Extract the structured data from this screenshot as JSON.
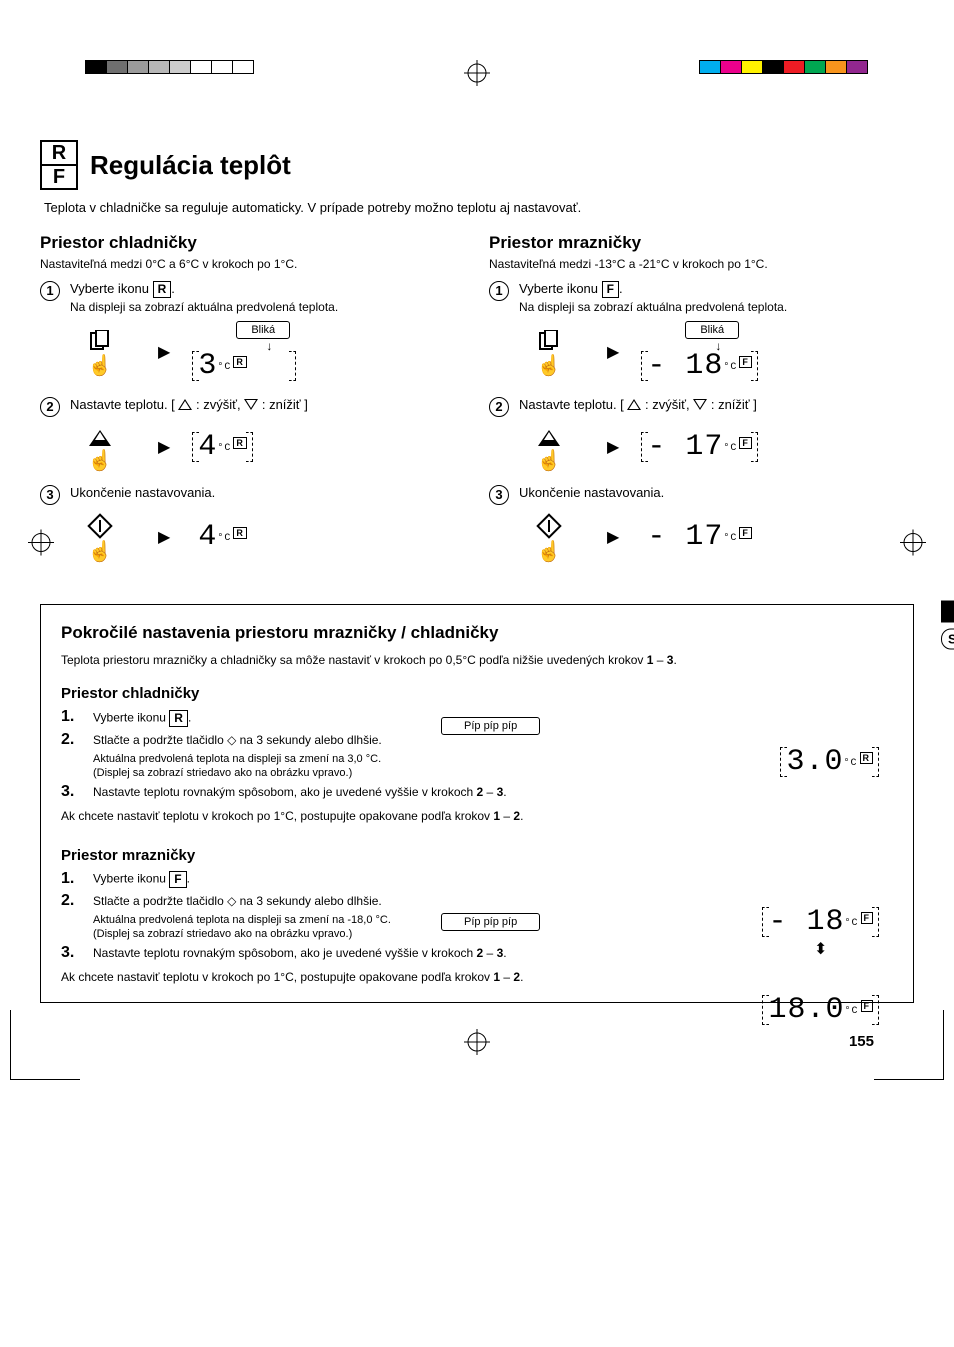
{
  "page_number": "155",
  "lang_tab": "SK",
  "registration": {
    "left_colors": [
      "#000000",
      "#6f6f6f",
      "#9b9b9b",
      "#b7b7b7",
      "#cccccc",
      "#ffffff",
      "#ffffff",
      "#ffffff"
    ],
    "right_colors": [
      "#00aeef",
      "#ec008c",
      "#fff200",
      "#000000",
      "#ed1c24",
      "#00a651",
      "#f7941d",
      "#92278f"
    ]
  },
  "header": {
    "badge_r": "R",
    "badge_f": "F",
    "title": "Regulácia teplôt",
    "intro": "Teplota v chladničke sa reguluje automaticky. V prípade potreby možno teplotu aj nastavovať."
  },
  "fridge": {
    "heading": "Priestor chladničky",
    "range": "Nastaviteľná medzi 0°C a 6°C v krokoch po 1°C.",
    "step1_a": "Vyberte ikonu ",
    "step1_badge": "R",
    "step1_b": ".",
    "step1_sub": "Na displeji sa zobrazí aktuálna predvolená teplota.",
    "blika": "Bliká",
    "display1": "3",
    "step2": "Nastavte teplotu. [ △ : zvýšiť, ▽ : znížiť ]",
    "display2": "4",
    "step3": "Ukončenie nastavovania.",
    "display3": "4",
    "unit_badge": "R"
  },
  "freezer": {
    "heading": "Priestor mrazničky",
    "range": "Nastaviteľná medzi -13°C a -21°C v krokoch po 1°C.",
    "step1_a": "Vyberte ikonu ",
    "step1_badge": "F",
    "step1_b": ".",
    "step1_sub": "Na displeji sa zobrazí aktuálna predvolená teplota.",
    "blika": "Bliká",
    "display1": "- 18",
    "step2": "Nastavte teplotu. [ △ : zvýšiť, ▽ : znížiť ]",
    "display2": "- 17",
    "step3": "Ukončenie nastavovania.",
    "display3": "- 17",
    "unit_badge": "F"
  },
  "advanced": {
    "heading": "Pokročilé nastavenia priestoru mrazničky / chladničky",
    "intro_a": "Teplota priestoru mrazničky a chladničky sa môže nastaviť v krokoch po 0,5°C podľa nižšie uvedených krokov ",
    "intro_b": "1",
    "intro_c": " – ",
    "intro_d": "3",
    "intro_e": ".",
    "pip": "Píp píp píp",
    "fridge": {
      "heading": "Priestor chladničky",
      "s1_a": "Vyberte ikonu ",
      "s1_badge": "R",
      "s1_b": ".",
      "s2": "Stlačte a podržte tlačidlo ◇ na 3 sekundy alebo dlhšie.",
      "s2_note1": "Aktuálna predvolená teplota na displeji sa zmení na 3,0 °C.",
      "s2_note2": "(Displej sa zobrazí striedavo ako na obrázku vpravo.)",
      "s3_a": "Nastavte teplotu rovnakým spôsobom, ako je uvedené vyššie v krokoch ",
      "s3_b": "2",
      "s3_c": " – ",
      "s3_d": "3",
      "s3_e": ".",
      "return_a": "Ak chcete nastaviť teplotu v krokoch po 1°C, postupujte opakovane podľa krokov ",
      "return_b": "1",
      "return_c": " – ",
      "return_d": "2",
      "return_e": ".",
      "display": "3.0",
      "unit_badge": "R"
    },
    "freezer": {
      "heading": "Priestor mrazničky",
      "s1_a": "Vyberte ikonu ",
      "s1_badge": "F",
      "s1_b": ".",
      "s2": "Stlačte a podržte tlačidlo ◇ na 3 sekundy alebo dlhšie.",
      "s2_note1": "Aktuálna predvolená teplota na displeji sa zmení na -18,0 °C.",
      "s2_note2": "(Displej sa zobrazí striedavo ako na obrázku vpravo.)",
      "s3_a": "Nastavte teplotu rovnakým spôsobom, ako je uvedené vyššie v krokoch ",
      "s3_b": "2",
      "s3_c": " – ",
      "s3_d": "3",
      "s3_e": ".",
      "return_a": "Ak chcete nastaviť teplotu v krokoch po 1°C, postupujte opakovane podľa krokov ",
      "return_b": "1",
      "return_c": " – ",
      "return_d": "2",
      "return_e": ".",
      "display1": "- 18",
      "display2": "18.0",
      "unit_badge": "F"
    }
  },
  "styling": {
    "body_bg": "#ffffff",
    "text_color": "#000000",
    "border_color": "#000000",
    "title_fontsize_pt": 20,
    "h2_fontsize_pt": 13,
    "body_fontsize_pt": 9,
    "seg_font": "Courier New, monospace"
  }
}
